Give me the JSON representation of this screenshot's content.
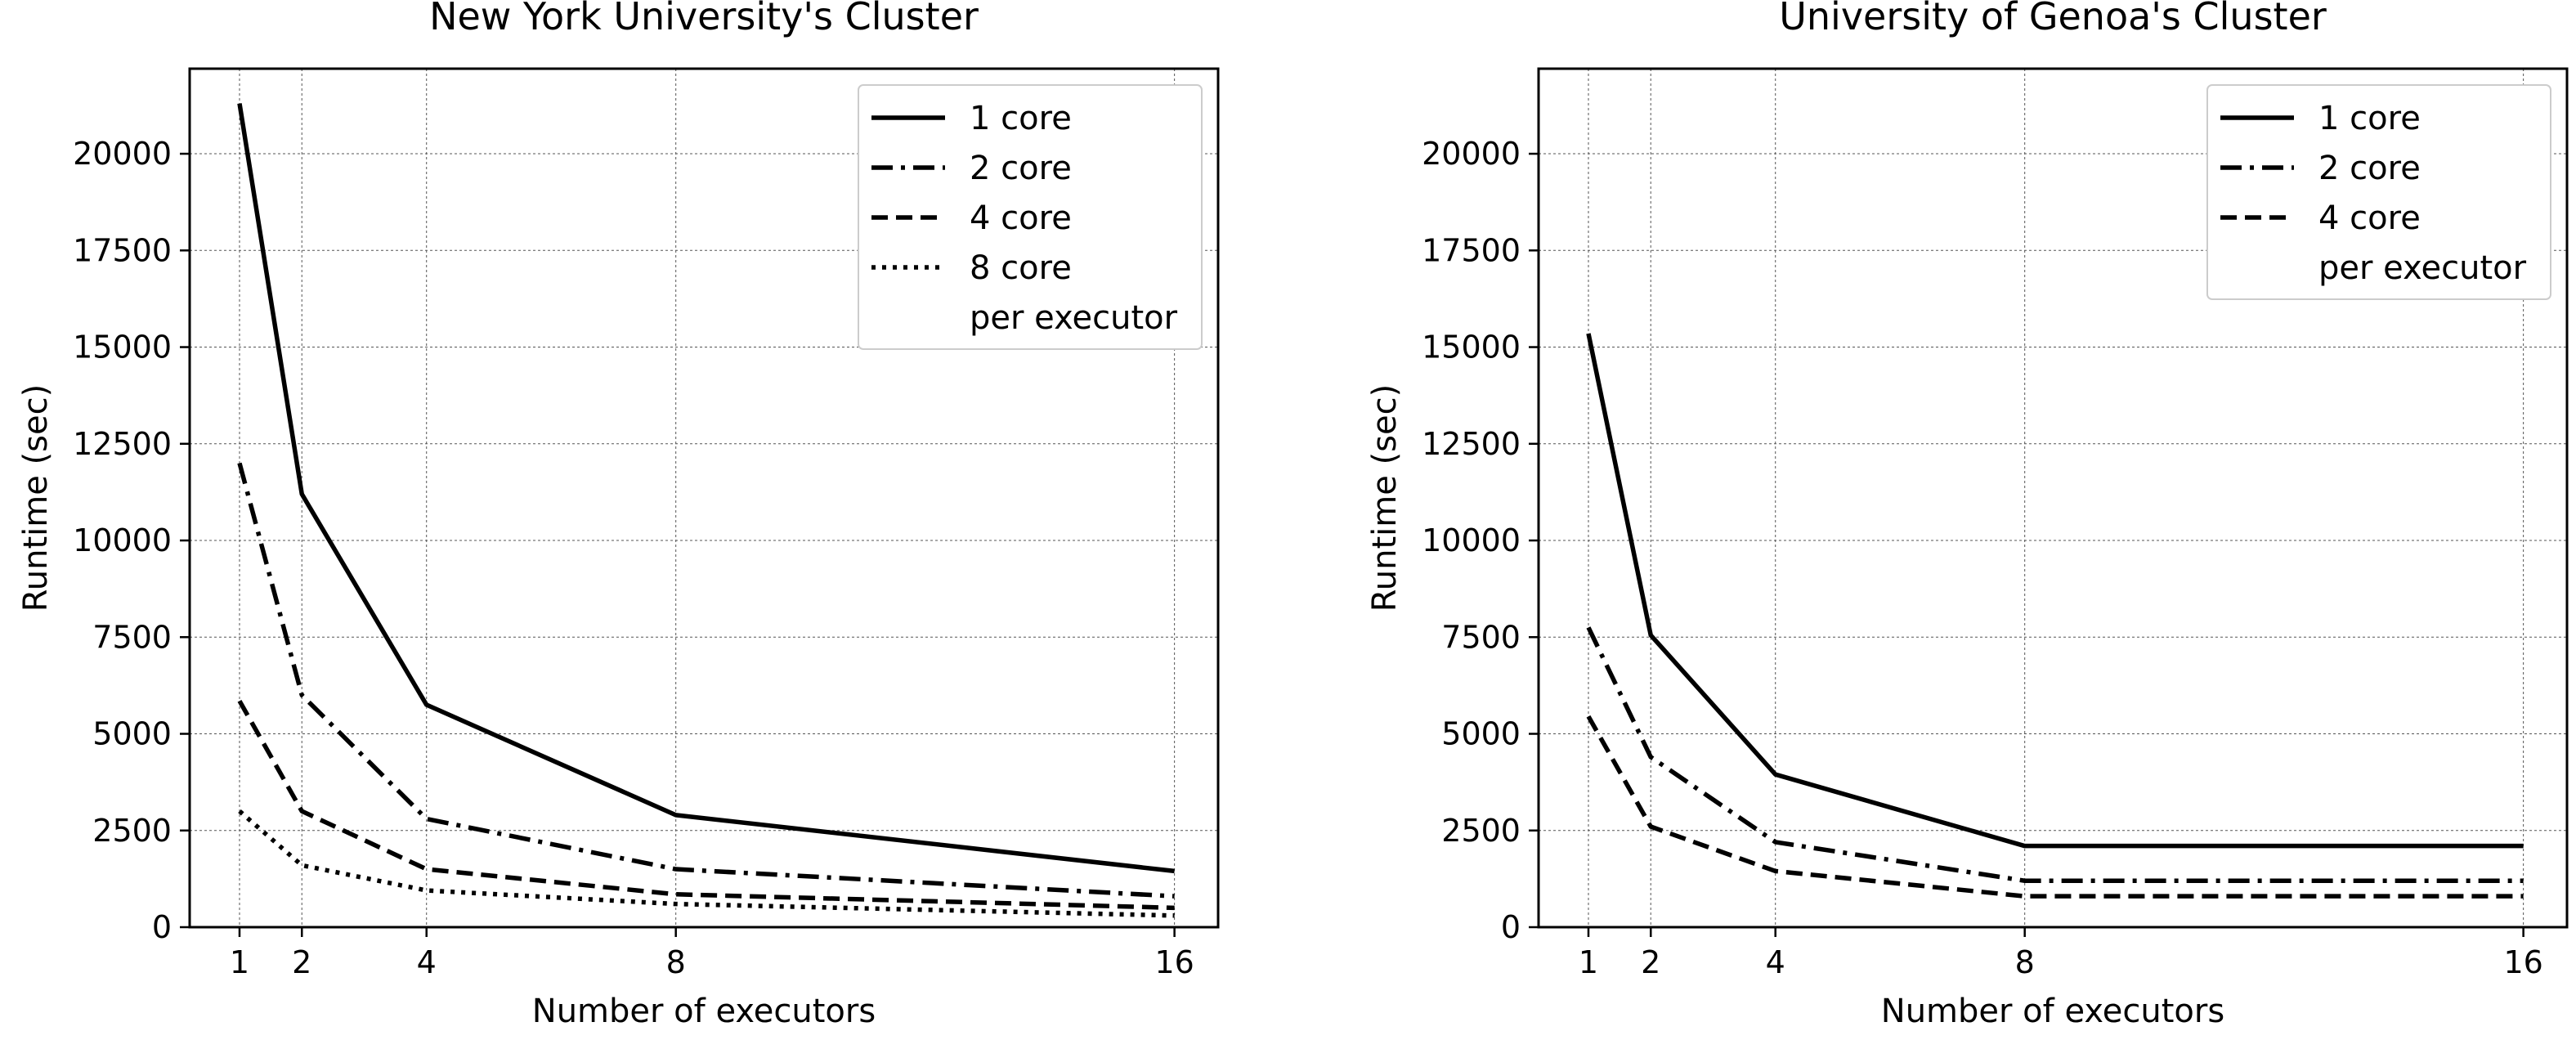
{
  "chart_data": [
    {
      "type": "line",
      "title": "New York University's Cluster",
      "xlabel": "Number of executors",
      "ylabel": "Runtime (sec)",
      "x": [
        1,
        2,
        4,
        8,
        16
      ],
      "x_ticks": [
        "1",
        "2",
        "4",
        "8",
        "16"
      ],
      "xlim": [
        0.2,
        16.7
      ],
      "ylim": [
        0,
        22200
      ],
      "y_ticks": [
        0,
        2500,
        5000,
        7500,
        10000,
        12500,
        15000,
        17500,
        20000
      ],
      "grid": true,
      "legend_position": "top-right",
      "legend_note": "per executor",
      "series": [
        {
          "name": "1 core",
          "style": "solid",
          "values": [
            21300,
            11200,
            5750,
            2900,
            1450
          ]
        },
        {
          "name": "2 core",
          "style": "dashdot",
          "values": [
            12000,
            6000,
            2800,
            1500,
            800
          ]
        },
        {
          "name": "4 core",
          "style": "dashed",
          "values": [
            5850,
            3000,
            1500,
            850,
            500
          ]
        },
        {
          "name": "8 core",
          "style": "dotted",
          "values": [
            3000,
            1600,
            950,
            600,
            300
          ]
        }
      ]
    },
    {
      "type": "line",
      "title": "University of Genoa's Cluster",
      "xlabel": "Number of executors",
      "ylabel": "Runtime (sec)",
      "x": [
        1,
        2,
        4,
        8,
        16
      ],
      "x_ticks": [
        "1",
        "2",
        "4",
        "8",
        "16"
      ],
      "xlim": [
        0.2,
        16.7
      ],
      "ylim": [
        0,
        22200
      ],
      "y_ticks": [
        0,
        2500,
        5000,
        7500,
        10000,
        12500,
        15000,
        17500,
        20000
      ],
      "grid": true,
      "legend_position": "top-right",
      "legend_note": "per executor",
      "series": [
        {
          "name": "1 core",
          "style": "solid",
          "values": [
            15350,
            7550,
            3950,
            2100,
            2100
          ]
        },
        {
          "name": "2 core",
          "style": "dashdot",
          "values": [
            7750,
            4400,
            2200,
            1200,
            1200
          ]
        },
        {
          "name": "4 core",
          "style": "dashed",
          "values": [
            5450,
            2600,
            1450,
            800,
            800
          ]
        }
      ]
    }
  ]
}
